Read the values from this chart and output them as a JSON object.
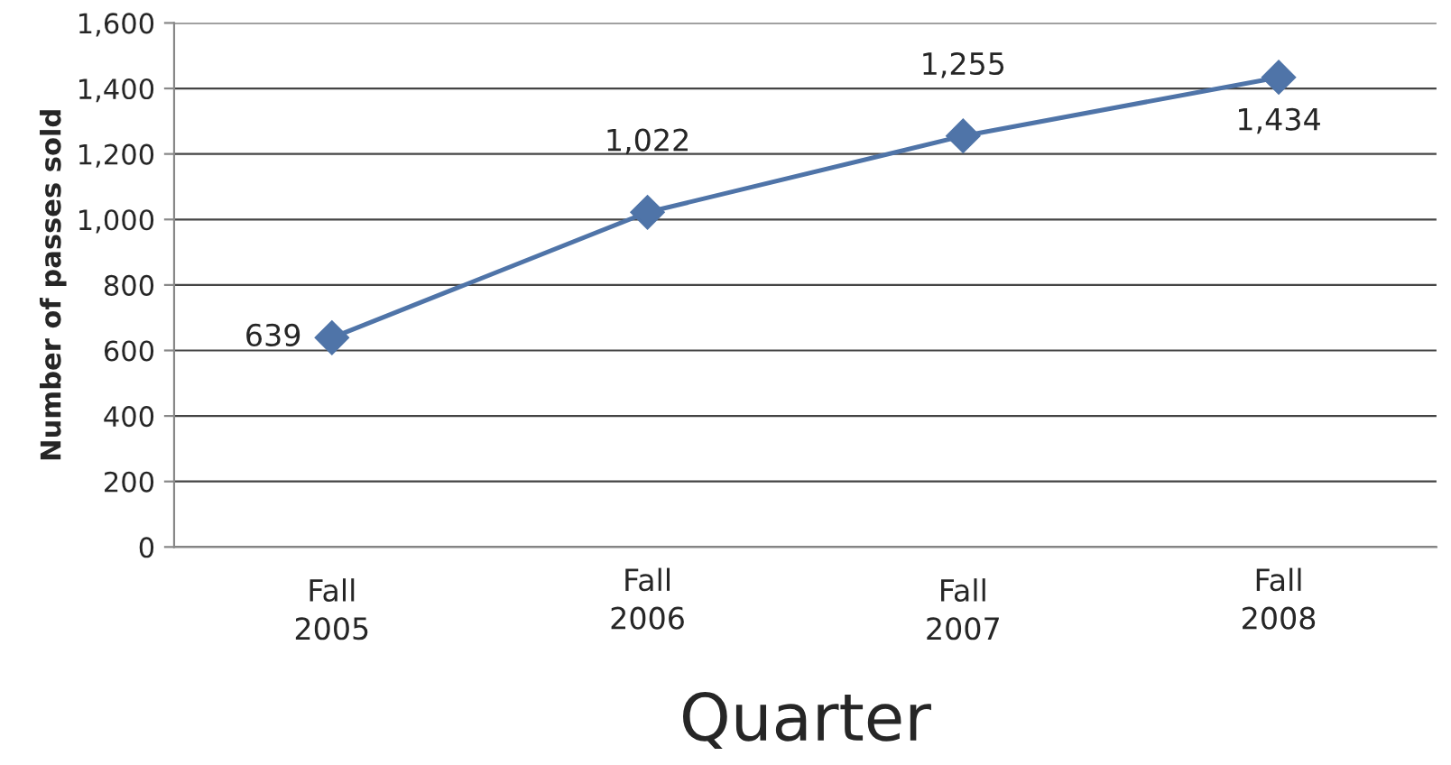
{
  "chart_data": {
    "type": "line",
    "xlabel": "Quarter",
    "ylabel": "Number of passes sold",
    "categories": [
      "Fall\n2005",
      "Fall\n2006",
      "Fall\n2007",
      "Fall\n2008"
    ],
    "series": [
      {
        "color": "#4f74a8",
        "values": [
          639,
          1022,
          1255,
          1434
        ],
        "value_labels": [
          "639",
          "1,022",
          "1,255",
          "1,434"
        ]
      }
    ],
    "ylim": [
      0,
      1600
    ],
    "yticks": [
      {
        "value": 0,
        "label": "0"
      },
      {
        "value": 200,
        "label": "200"
      },
      {
        "value": 400,
        "label": "400"
      },
      {
        "value": 600,
        "label": "600"
      },
      {
        "value": 800,
        "label": "800"
      },
      {
        "value": 1000,
        "label": "1,000"
      },
      {
        "value": 1200,
        "label": "1,200"
      },
      {
        "value": 1400,
        "label": "1,400"
      },
      {
        "value": 1600,
        "label": "1,600"
      }
    ],
    "grid": "y",
    "marker": "diamond",
    "line_style": "solid",
    "legend": false
  }
}
